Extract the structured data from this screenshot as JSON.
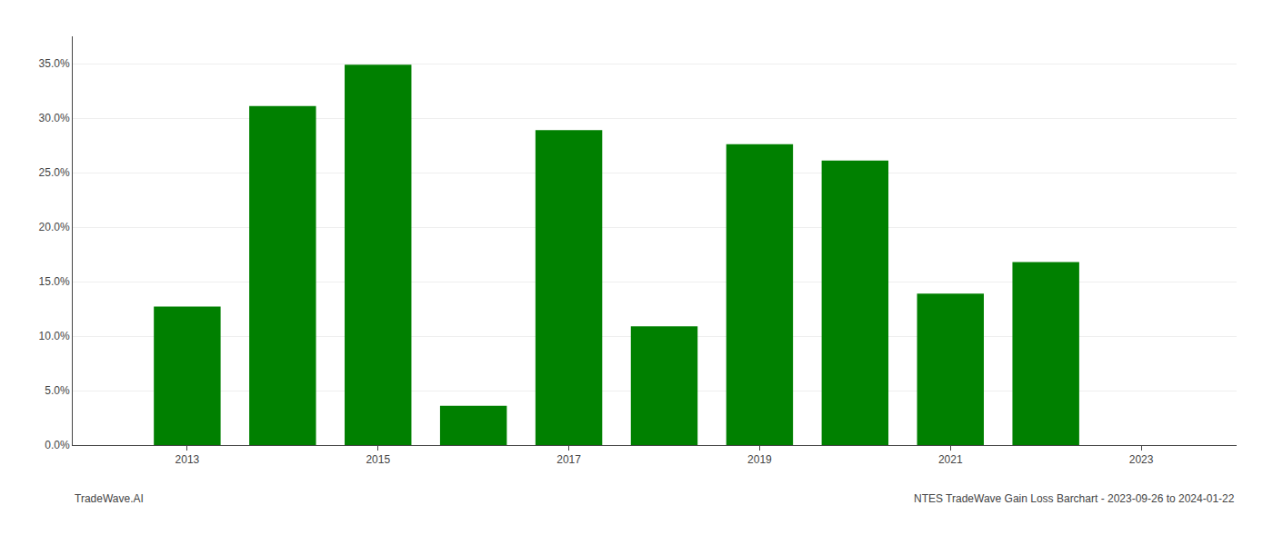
{
  "chart_data": {
    "type": "bar",
    "x": [
      2013,
      2014,
      2015,
      2016,
      2017,
      2018,
      2019,
      2020,
      2021,
      2022
    ],
    "values": [
      0.127,
      0.311,
      0.349,
      0.036,
      0.289,
      0.109,
      0.276,
      0.261,
      0.139,
      0.168
    ],
    "color": "#008000",
    "xlim": [
      2011.8,
      2024.0
    ],
    "xticks": [
      2013,
      2015,
      2017,
      2019,
      2021,
      2023
    ],
    "ylim": [
      0,
      0.375
    ],
    "yticks": [
      {
        "value": 0.0,
        "label": "0.0%"
      },
      {
        "value": 0.05,
        "label": "5.0%"
      },
      {
        "value": 0.1,
        "label": "10.0%"
      },
      {
        "value": 0.15,
        "label": "15.0%"
      },
      {
        "value": 0.2,
        "label": "20.0%"
      },
      {
        "value": 0.25,
        "label": "25.0%"
      },
      {
        "value": 0.3,
        "label": "30.0%"
      },
      {
        "value": 0.35,
        "label": "35.0%"
      }
    ],
    "grid": true,
    "annotations": [
      "TradeWave.AI",
      "NTES TradeWave Gain Loss Barchart - 2023-09-26 to 2024-01-22"
    ]
  }
}
